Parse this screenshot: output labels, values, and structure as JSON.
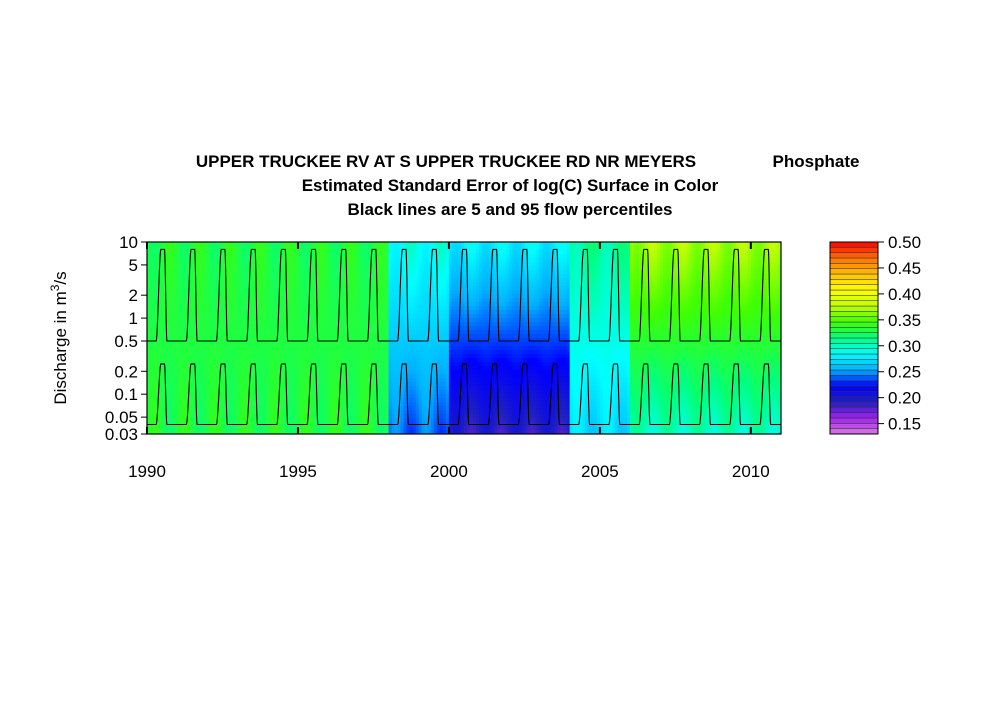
{
  "chart_data": {
    "type": "heatmap",
    "title": {
      "site": "UPPER TRUCKEE RV AT S UPPER TRUCKEE RD NR MEYERS",
      "constituent": "Phosphate",
      "line2": "Estimated Standard Error of log(C) Surface in Color",
      "line3": "Black lines are 5 and 95 flow percentiles"
    },
    "ylabel": {
      "prefix": "Discharge in m",
      "sup": "3",
      "suffix": "/s"
    },
    "x_ticks": [
      "1990",
      "1995",
      "2000",
      "2005",
      "2010"
    ],
    "x_tick_values": [
      1990,
      1995,
      2000,
      2005,
      2010
    ],
    "xlim": [
      1990,
      2011
    ],
    "y_scale": "log",
    "y_ticks": [
      "10",
      "5",
      "2",
      "1",
      "0.5",
      "0.2",
      "0.1",
      "0.05",
      "0.03"
    ],
    "y_tick_values": [
      10,
      5,
      2,
      1,
      0.5,
      0.2,
      0.1,
      0.05,
      0.03
    ],
    "ylim": [
      0.03,
      10
    ],
    "colorbar": {
      "range": [
        0.13,
        0.5
      ],
      "ticks": [
        "0.50",
        "0.45",
        "0.40",
        "0.35",
        "0.30",
        "0.25",
        "0.20",
        "0.15"
      ],
      "tick_values": [
        0.5,
        0.45,
        0.4,
        0.35,
        0.3,
        0.25,
        0.2,
        0.15
      ],
      "colors": [
        "#d77be0",
        "#a020f0",
        "#2020c0",
        "#0000ff",
        "#00b0ff",
        "#00ffff",
        "#00ff80",
        "#40ff00",
        "#c0ff00",
        "#ffff00",
        "#ffc000",
        "#ff7000",
        "#ff0000"
      ]
    },
    "flow_percentiles": {
      "p95_low": 0.5,
      "p95_high": 8.0,
      "p5_low": 0.04,
      "p5_high": 0.25,
      "years": [
        1990,
        1991,
        1992,
        1993,
        1994,
        1995,
        1996,
        1997,
        1998,
        1999,
        2000,
        2001,
        2002,
        2003,
        2004,
        2005,
        2006,
        2007,
        2008,
        2009,
        2010
      ]
    },
    "se_by_period": [
      {
        "years": [
          1990,
          1998
        ],
        "high_flow": 0.33,
        "low_flow": 0.33
      },
      {
        "years": [
          1998,
          2000
        ],
        "high_flow": 0.29,
        "low_flow": 0.24
      },
      {
        "years": [
          2000,
          2004
        ],
        "high_flow": 0.28,
        "low_flow": 0.19
      },
      {
        "years": [
          2004,
          2006
        ],
        "high_flow": 0.31,
        "low_flow": 0.27
      },
      {
        "years": [
          2006,
          2011
        ],
        "high_flow": 0.37,
        "low_flow": 0.3
      }
    ]
  }
}
